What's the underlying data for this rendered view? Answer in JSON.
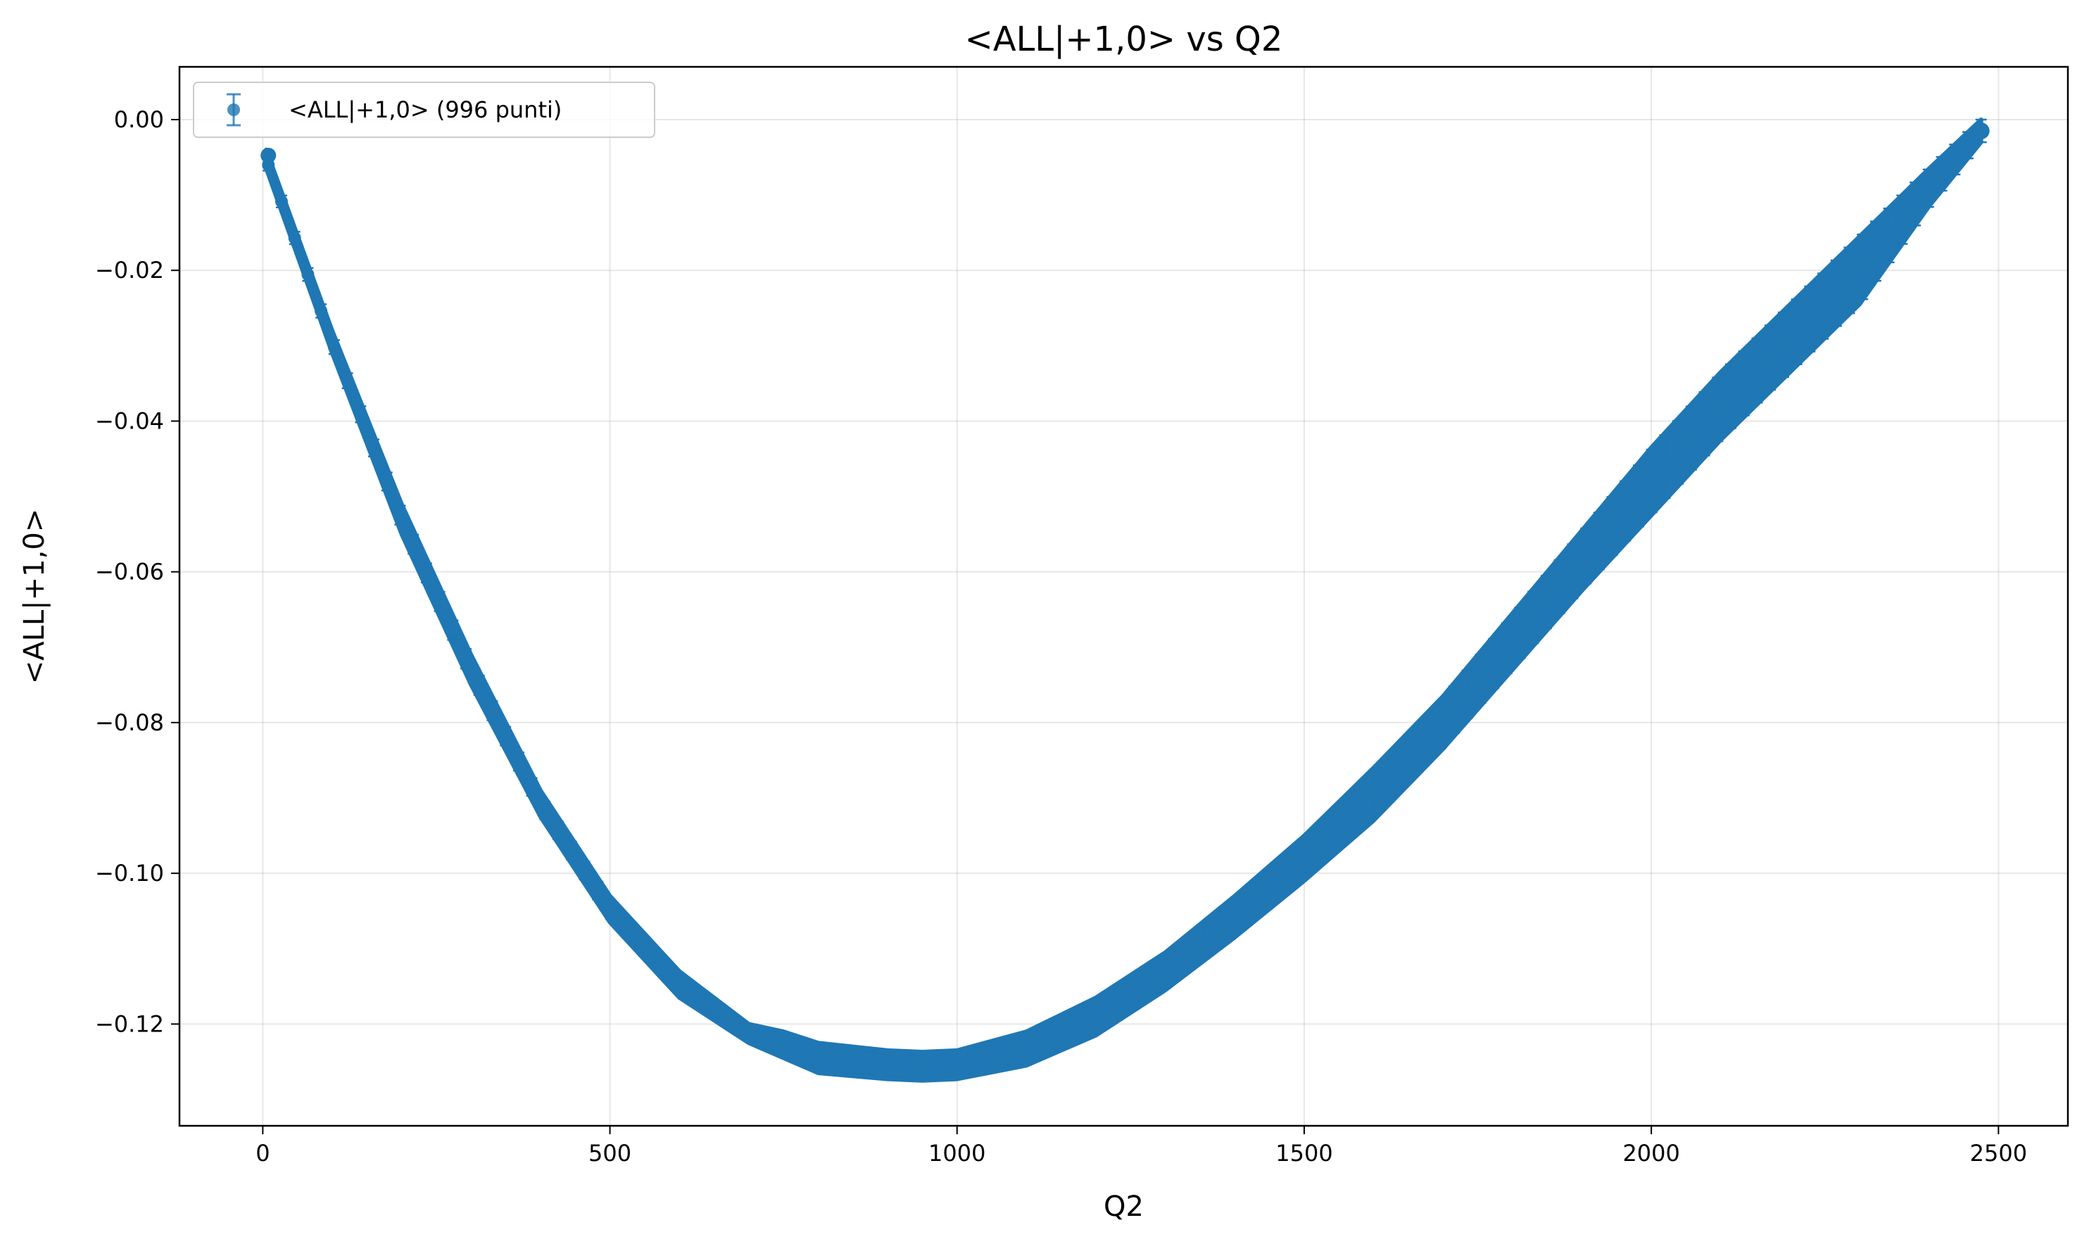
{
  "chart_data": {
    "type": "scatter",
    "title": "<ALL|+1,0> vs Q2",
    "xlabel": "Q2",
    "ylabel": "<ALL|+1,0>",
    "xlim": [
      -120,
      2600
    ],
    "ylim": [
      -0.1335,
      0.007
    ],
    "xticks": [
      0,
      500,
      1000,
      1500,
      2000,
      2500
    ],
    "xtick_labels": [
      "0",
      "500",
      "1000",
      "1500",
      "2000",
      "2500"
    ],
    "yticks": [
      0.0,
      -0.02,
      -0.04,
      -0.06,
      -0.08,
      -0.1,
      -0.12
    ],
    "ytick_labels": [
      "0.00",
      "−0.02",
      "−0.04",
      "−0.06",
      "−0.08",
      "−0.10",
      "−0.12"
    ],
    "grid": true,
    "legend": {
      "placement": "top-left",
      "label": "<ALL|+1,0> (996 punti)"
    },
    "series": [
      {
        "name": "<ALL|+1,0> (996 punti)",
        "color": "#1f77b4",
        "marker": "circle",
        "errorbars": true,
        "points": 996,
        "q2_min": 8,
        "q2_max": 2475,
        "band_upper": {
          "x": [
            5,
            100,
            200,
            300,
            400,
            500,
            600,
            700,
            750,
            800,
            900,
            950,
            1000,
            1100,
            1200,
            1300,
            1400,
            1500,
            1600,
            1700,
            1800,
            1900,
            2000,
            2100,
            2200,
            2300,
            2400,
            2475
          ],
          "y": [
            -0.004,
            -0.028,
            -0.051,
            -0.071,
            -0.089,
            -0.103,
            -0.113,
            -0.12,
            -0.121,
            -0.1225,
            -0.1235,
            -0.1237,
            -0.1235,
            -0.121,
            -0.1165,
            -0.1105,
            -0.103,
            -0.095,
            -0.086,
            -0.0765,
            -0.0655,
            -0.0545,
            -0.0435,
            -0.0335,
            -0.0245,
            -0.0155,
            -0.0065,
            0.0
          ]
        },
        "band_lower": {
          "x": [
            5,
            100,
            200,
            300,
            400,
            500,
            600,
            700,
            750,
            800,
            900,
            950,
            1000,
            1100,
            1200,
            1300,
            1400,
            1500,
            1600,
            1700,
            1800,
            1900,
            2000,
            2100,
            2200,
            2300,
            2400,
            2475
          ],
          "y": [
            -0.0065,
            -0.031,
            -0.055,
            -0.075,
            -0.0925,
            -0.1065,
            -0.1165,
            -0.1225,
            -0.1245,
            -0.1265,
            -0.1273,
            -0.1275,
            -0.1273,
            -0.1255,
            -0.1215,
            -0.1155,
            -0.1085,
            -0.101,
            -0.093,
            -0.0835,
            -0.073,
            -0.0625,
            -0.0525,
            -0.0425,
            -0.0335,
            -0.0245,
            -0.0115,
            -0.003
          ]
        }
      }
    ]
  }
}
